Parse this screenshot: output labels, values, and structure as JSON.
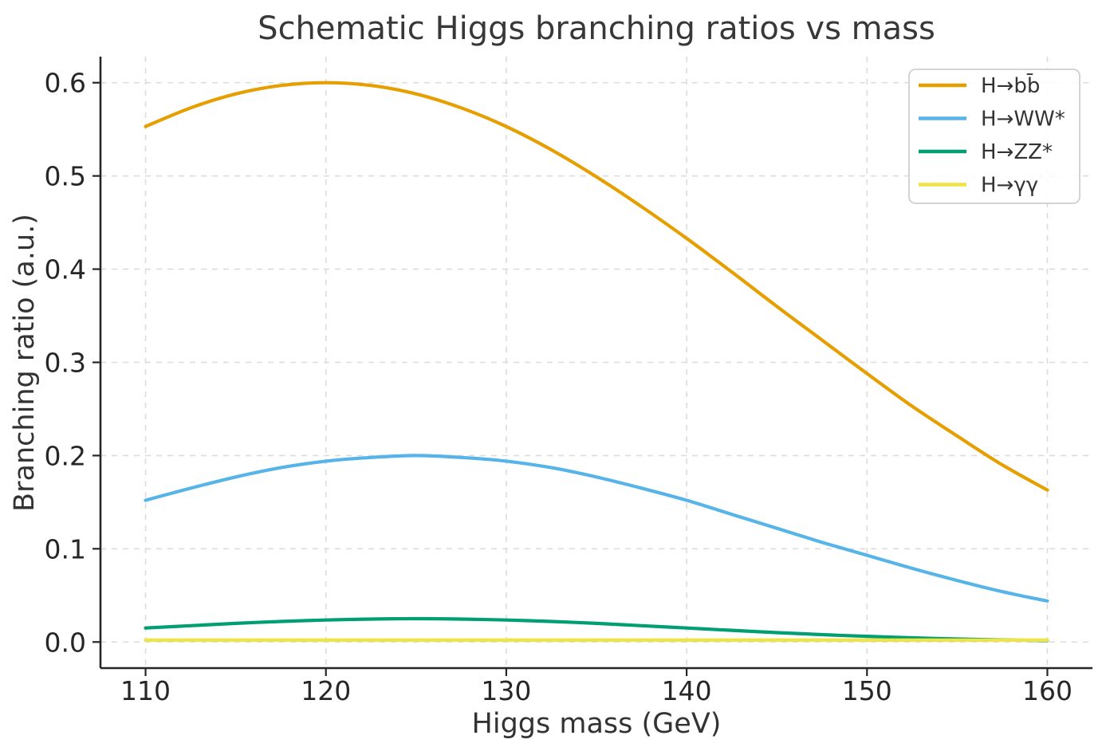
{
  "chart_data": {
    "type": "line",
    "title": "Schematic Higgs branching ratios vs mass",
    "xlabel": "Higgs mass (GeV)",
    "ylabel": "Branching ratio (a.u.)",
    "xlim": [
      107.5,
      162.5
    ],
    "ylim": [
      -0.028,
      0.628
    ],
    "grid": true,
    "grid_style": "dashed",
    "legend_position": "upper right",
    "x_ticks": [
      110,
      120,
      130,
      140,
      150,
      160
    ],
    "y_ticks": [
      "0.0",
      "0.1",
      "0.2",
      "0.3",
      "0.4",
      "0.5",
      "0.6"
    ],
    "y_tick_values": [
      0.0,
      0.1,
      0.2,
      0.3,
      0.4,
      0.5,
      0.6
    ],
    "x": [
      110,
      112.5,
      115,
      117.5,
      120,
      122.5,
      125,
      127.5,
      130,
      132.5,
      135,
      137.5,
      140,
      142.5,
      145,
      147.5,
      150,
      152.5,
      155,
      157.5,
      160
    ],
    "series": [
      {
        "name": "H→bb̄",
        "color": "#E69F00",
        "values": [
          0.553,
          0.573,
          0.588,
          0.597,
          0.6,
          0.597,
          0.588,
          0.573,
          0.553,
          0.528,
          0.499,
          0.467,
          0.433,
          0.397,
          0.36,
          0.324,
          0.288,
          0.253,
          0.221,
          0.19,
          0.163
        ]
      },
      {
        "name": "H→WW*",
        "color": "#56B4E9",
        "values": [
          0.152,
          0.165,
          0.177,
          0.187,
          0.194,
          0.198,
          0.2,
          0.198,
          0.194,
          0.187,
          0.177,
          0.165,
          0.152,
          0.137,
          0.122,
          0.107,
          0.093,
          0.079,
          0.066,
          0.054,
          0.044
        ]
      },
      {
        "name": "H→ZZ*",
        "color": "#009E73",
        "values": [
          0.015,
          0.0175,
          0.02,
          0.022,
          0.0236,
          0.0246,
          0.025,
          0.0246,
          0.0236,
          0.022,
          0.02,
          0.0175,
          0.015,
          0.0125,
          0.0101,
          0.0079,
          0.0061,
          0.0045,
          0.0032,
          0.0023,
          0.0016
        ]
      },
      {
        "name": "H→γγ",
        "color": "#F0E442",
        "values": [
          0.002,
          0.002,
          0.002,
          0.002,
          0.002,
          0.002,
          0.002,
          0.002,
          0.002,
          0.002,
          0.002,
          0.002,
          0.002,
          0.002,
          0.002,
          0.002,
          0.002,
          0.002,
          0.002,
          0.002,
          0.002
        ]
      }
    ],
    "style": {
      "grid_color": "#dcdcdc",
      "spine_color": "#262626",
      "tick_label_color": "#262626",
      "legend_border_color": "#cfcfcf",
      "background": "#ffffff"
    }
  }
}
